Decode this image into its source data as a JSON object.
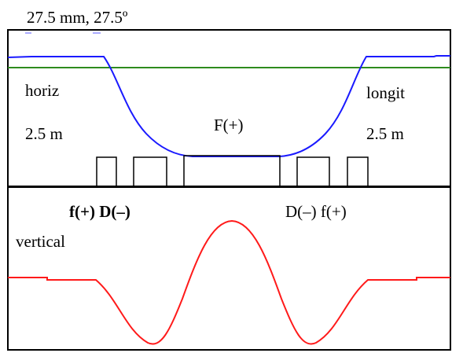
{
  "title": "27.5 mm, 27.5º",
  "labels": {
    "horiz": "horiz",
    "longit": "longit",
    "length_left": "2.5 m",
    "length_right": "2.5 m",
    "center_lens": "F(+)",
    "vertical": "vertical",
    "left_lenses": "f(+) D(–)",
    "right_lenses": "D(–)  f(+)"
  },
  "colors": {
    "horizontal_curve": "#1a1aff",
    "longitudinal_line": "#2e8b1e",
    "vertical_curve": "#ff1a1a",
    "frame": "#000000"
  },
  "panels": [
    "top",
    "bottom"
  ],
  "elements": [
    {
      "name": "f-lens-left",
      "sign": "+"
    },
    {
      "name": "d-lens-left",
      "sign": "–"
    },
    {
      "name": "F-lens-center",
      "sign": "+"
    },
    {
      "name": "d-lens-right",
      "sign": "–"
    },
    {
      "name": "f-lens-right",
      "sign": "+"
    }
  ]
}
